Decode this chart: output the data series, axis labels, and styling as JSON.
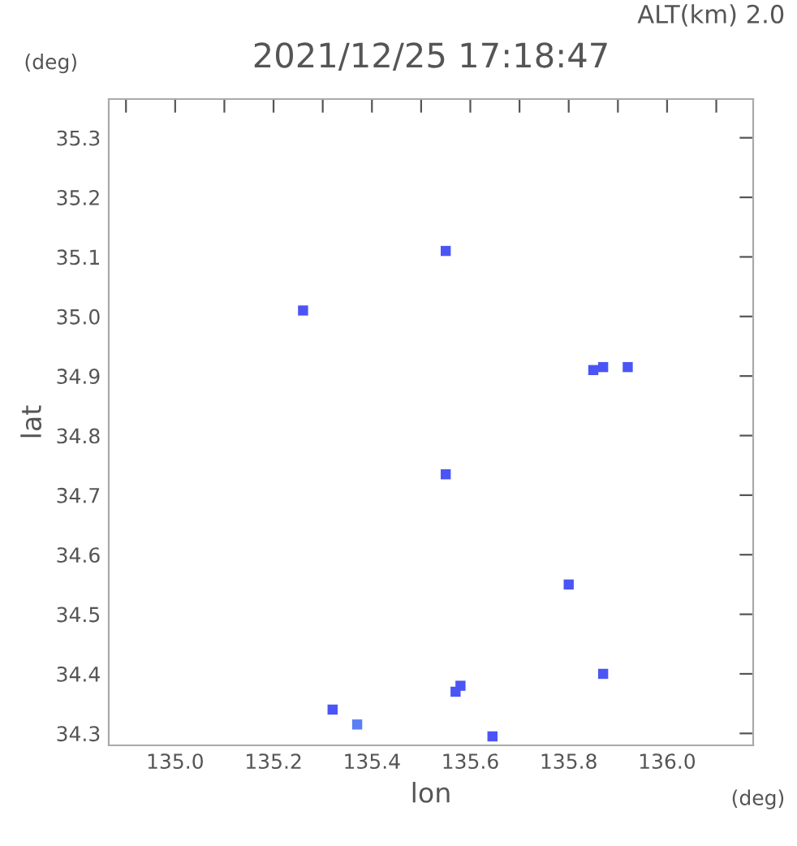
{
  "chart_data": {
    "type": "scatter",
    "title": "2021/12/25 17:18:47",
    "subtitle": "ALT(km) 2.0",
    "xlabel": "lon",
    "ylabel": "lat",
    "annotations": [
      "(deg)",
      "(deg)"
    ],
    "x": [
      135.55,
      135.26,
      135.85,
      135.87,
      135.92,
      135.55,
      135.8,
      135.87,
      135.58,
      135.57,
      135.32,
      135.37,
      135.645
    ],
    "values": [
      35.11,
      35.01,
      34.91,
      34.915,
      34.915,
      34.735,
      34.55,
      34.4,
      34.38,
      34.37,
      34.34,
      34.315,
      34.295
    ],
    "colors": [
      "#4b55f5",
      "#4b55f5",
      "#4b55f5",
      "#4b55f5",
      "#4b55f5",
      "#4b55f5",
      "#4b55f5",
      "#4b55f5",
      "#4b55f5",
      "#4b55f5",
      "#4b55f5",
      "#5a7ff5",
      "#4b55f5"
    ],
    "marker": "square",
    "xlim": [
      134.865,
      136.175
    ],
    "ylim": [
      34.28,
      35.365
    ],
    "xticks": [
      {
        "value": 134.9,
        "label": null
      },
      {
        "value": 135.0,
        "label": "135.0"
      },
      {
        "value": 135.1,
        "label": null
      },
      135.2,
      {
        "value": 135.3,
        "label": null
      },
      135.4,
      {
        "value": 135.5,
        "label": null
      },
      135.6,
      {
        "value": 135.7,
        "label": null
      },
      135.8,
      {
        "value": 135.9,
        "label": null
      },
      {
        "value": 136.0,
        "label": "136.0"
      },
      {
        "value": 136.1,
        "label": null
      }
    ],
    "yticks": [
      34.3,
      34.4,
      34.5,
      34.6,
      34.7,
      34.8,
      34.9,
      {
        "value": 35.0,
        "label": "35.0"
      },
      35.1,
      35.2,
      35.3
    ],
    "grid": false,
    "legend": false
  }
}
